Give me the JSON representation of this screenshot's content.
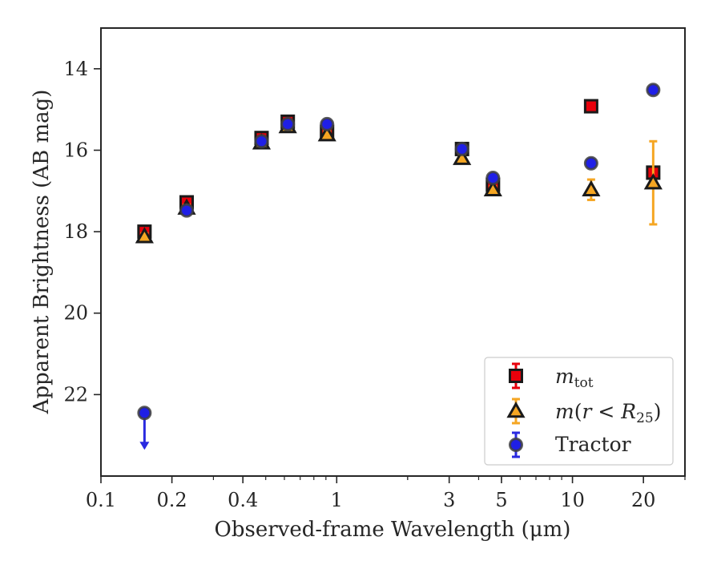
{
  "chart_data": {
    "type": "scatter",
    "xlabel": "Observed-frame Wavelength (μm)",
    "ylabel": "Apparent Brightness (AB mag)",
    "xscale": "log",
    "xlim": [
      0.1,
      30
    ],
    "ylim": [
      24,
      13
    ],
    "y_inverted": true,
    "grid": false,
    "legend_position": "lower-right",
    "xticks": [
      {
        "value": 0.1,
        "label": "0.1"
      },
      {
        "value": 0.2,
        "label": "0.2"
      },
      {
        "value": 0.4,
        "label": "0.4"
      },
      {
        "value": 1,
        "label": "1"
      },
      {
        "value": 3,
        "label": "3"
      },
      {
        "value": 5,
        "label": "5"
      },
      {
        "value": 10,
        "label": "10"
      },
      {
        "value": 20,
        "label": "20"
      }
    ],
    "yticks": [
      {
        "value": 14,
        "label": "14"
      },
      {
        "value": 16,
        "label": "16"
      },
      {
        "value": 18,
        "label": "18"
      },
      {
        "value": 20,
        "label": "20"
      },
      {
        "value": 22,
        "label": "22"
      }
    ],
    "series": [
      {
        "name": "m_tot",
        "legend_main": "m",
        "legend_sub": "tot",
        "marker": "square",
        "color": "#e8000b",
        "edge_color": "#1a1a1a",
        "error_color": "#e8000b",
        "points": [
          {
            "x": 0.153,
            "y": 18.0,
            "err": 0.12
          },
          {
            "x": 0.231,
            "y": 17.28,
            "err": 0.1
          },
          {
            "x": 0.48,
            "y": 15.7,
            "err": 0.08
          },
          {
            "x": 0.62,
            "y": 15.3,
            "err": 0.08
          },
          {
            "x": 0.91,
            "y": 15.55,
            "err": 0.08
          },
          {
            "x": 3.4,
            "y": 15.97,
            "err": 0.08
          },
          {
            "x": 4.6,
            "y": 16.85,
            "err": 0.08
          },
          {
            "x": 12.0,
            "y": 14.92,
            "err": 0.08
          },
          {
            "x": 22.0,
            "y": 16.55,
            "err": 0.08
          }
        ]
      },
      {
        "name": "m(r < R25)",
        "legend_parts": [
          "m",
          "(",
          "r",
          " < ",
          "R",
          "25",
          ")"
        ],
        "marker": "triangle",
        "color": "#f5a623",
        "edge_color": "#1a1a1a",
        "error_color": "#f5a623",
        "points": [
          {
            "x": 0.153,
            "y": 18.12,
            "err": 0.08
          },
          {
            "x": 0.231,
            "y": 17.42,
            "err": 0.08
          },
          {
            "x": 0.48,
            "y": 15.82,
            "err": 0.08
          },
          {
            "x": 0.62,
            "y": 15.42,
            "err": 0.08
          },
          {
            "x": 0.91,
            "y": 15.62,
            "err": 0.08
          },
          {
            "x": 3.4,
            "y": 16.2,
            "err": 0.08
          },
          {
            "x": 4.6,
            "y": 16.97,
            "err": 0.08
          },
          {
            "x": 12.0,
            "y": 16.97,
            "err": 0.25
          },
          {
            "x": 22.0,
            "y": 16.8,
            "err": 1.02
          }
        ]
      },
      {
        "name": "Tractor",
        "marker": "circle",
        "color": "#1f1fe6",
        "edge_color": "#404040",
        "error_color": "#2a2ae0",
        "points": [
          {
            "x": 0.153,
            "y": 22.45,
            "upper_limit": true
          },
          {
            "x": 0.231,
            "y": 17.48,
            "err": 0.08
          },
          {
            "x": 0.48,
            "y": 15.78,
            "err": 0.08
          },
          {
            "x": 0.62,
            "y": 15.36,
            "err": 0.08
          },
          {
            "x": 0.91,
            "y": 15.36,
            "err": 0.08
          },
          {
            "x": 3.4,
            "y": 15.97,
            "err": 0.08
          },
          {
            "x": 4.6,
            "y": 16.68,
            "err": 0.08
          },
          {
            "x": 12.0,
            "y": 16.32,
            "err": 0.08
          },
          {
            "x": 22.0,
            "y": 14.52,
            "err": 0.08
          }
        ]
      }
    ]
  }
}
